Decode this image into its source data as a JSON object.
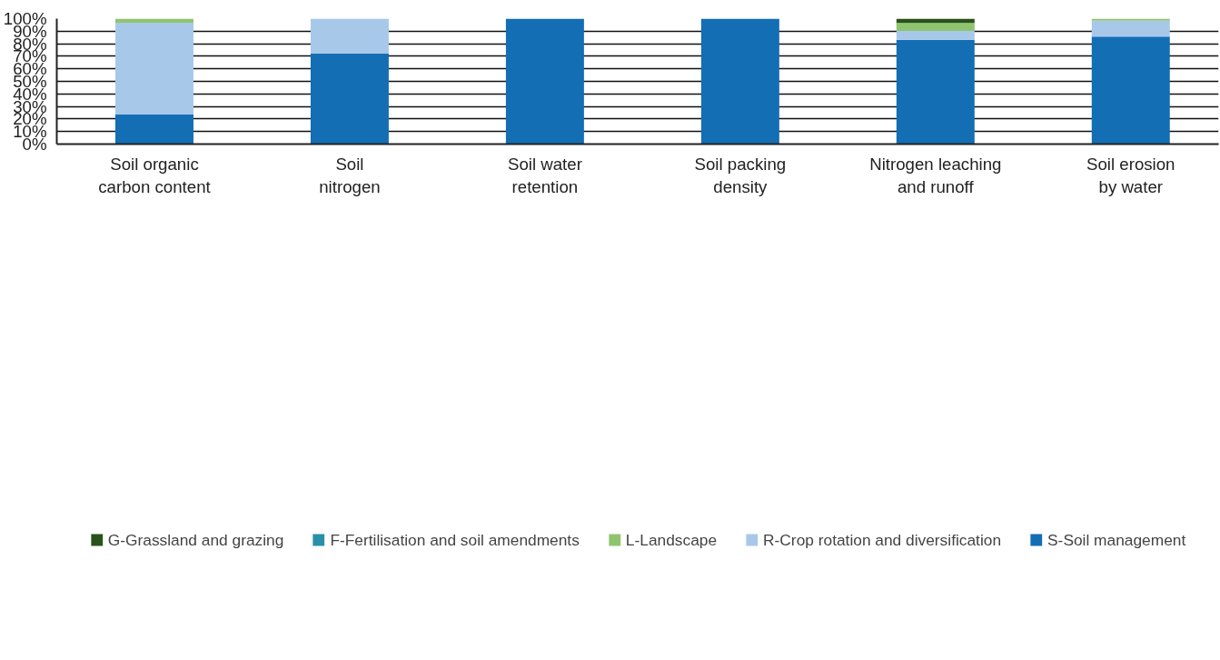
{
  "chart_data": {
    "type": "bar",
    "stacked": true,
    "categories": [
      "Soil organic\ncarbon content",
      "Soil\nnitrogen",
      "Soil water\nretention",
      "Soil packing\ndensity",
      "Nitrogen leaching\nand runoff",
      "Soil erosion\nby water"
    ],
    "series": [
      {
        "name": "S-Soil management",
        "color": "#136eb4",
        "values": [
          23.6,
          72.3,
          100,
          100,
          83.2,
          85.6
        ]
      },
      {
        "name": "R-Crop rotation and diversification",
        "color": "#a8c8ea",
        "values": [
          73.1,
          27.7,
          0,
          0,
          7.1,
          12.8
        ]
      },
      {
        "name": "L-Landscape",
        "color": "#8fc46f",
        "values": [
          3.3,
          0,
          0,
          0,
          6.2,
          1.6
        ]
      },
      {
        "name": "F-Fertilisation and soil amendments",
        "color": "#2a90a8",
        "values": [
          0,
          0,
          0,
          0,
          0,
          0
        ]
      },
      {
        "name": "G-Grassland and grazing",
        "color": "#29521a",
        "values": [
          0,
          0,
          0,
          0,
          3.5,
          0
        ]
      }
    ],
    "ylim": [
      0,
      100
    ],
    "yticks": [
      {
        "value": 0,
        "label": "0%"
      },
      {
        "value": 10,
        "label": "10%"
      },
      {
        "value": 20,
        "label": "20%"
      },
      {
        "value": 30,
        "label": "30%"
      },
      {
        "value": 40,
        "label": "40%"
      },
      {
        "value": 50,
        "label": "50%"
      },
      {
        "value": 60,
        "label": "60%"
      },
      {
        "value": 70,
        "label": "70%"
      },
      {
        "value": 80,
        "label": "80%"
      },
      {
        "value": 90,
        "label": "90%"
      },
      {
        "value": 100,
        "label": "100%"
      }
    ],
    "grid": "y",
    "legend": "bottom"
  }
}
